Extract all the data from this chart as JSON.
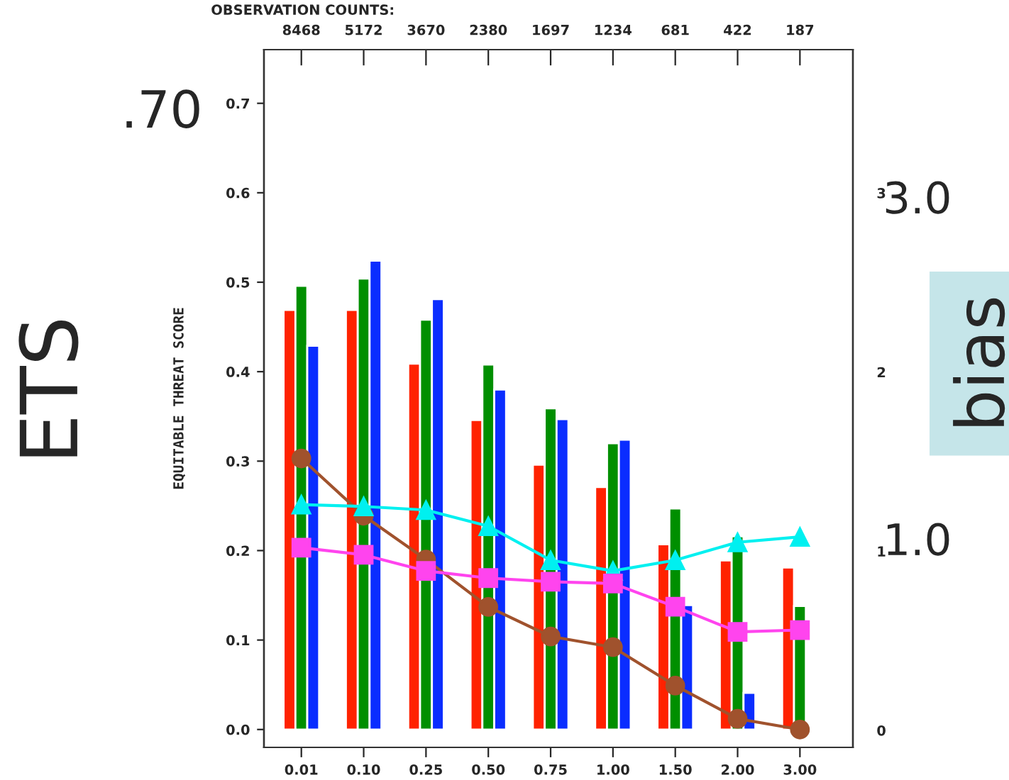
{
  "chart_data": {
    "type": "bar",
    "ylabel": "EQUITABLE THREAT SCORE",
    "y2label": "bias",
    "x2label": "OBSERVATION COUNTS:",
    "categories": [
      "0.01",
      "0.10",
      "0.25",
      "0.50",
      "0.75",
      "1.00",
      "1.50",
      "2.00",
      "3.00"
    ],
    "series": [
      {
        "color": "#ff2200",
        "values": [
          0.469,
          0.469,
          0.409,
          0.346,
          0.296,
          0.271,
          0.207,
          0.189,
          0.181
        ]
      },
      {
        "color": "#008f00",
        "values": [
          0.496,
          0.504,
          0.458,
          0.408,
          0.359,
          0.32,
          0.247,
          0.216,
          0.138
        ]
      },
      {
        "color": "#0a2dff",
        "values": [
          0.429,
          0.524,
          0.481,
          0.38,
          0.347,
          0.324,
          0.139,
          0.041,
          null
        ]
      },
      {
        "type": "line",
        "color": "#a0522d",
        "marker": "circle",
        "values": [
          0.303,
          0.239,
          0.19,
          0.137,
          0.104,
          0.092,
          0.049,
          0.012,
          0.0
        ]
      },
      {
        "type": "line",
        "color": "#00f0f0",
        "marker": "triangle",
        "axis": "y2",
        "values": [
          1.26,
          1.25,
          1.23,
          1.14,
          0.95,
          0.89,
          0.95,
          1.05,
          1.08
        ]
      },
      {
        "type": "line",
        "color": "#ff44ee",
        "marker": "square",
        "axis": "y2",
        "values": [
          1.02,
          0.98,
          0.89,
          0.85,
          0.83,
          0.82,
          0.69,
          0.55,
          0.56
        ]
      }
    ],
    "ylim": [
      -0.02,
      0.76
    ],
    "yticks": [
      {
        "value": 0,
        "label": "0.0"
      },
      {
        "value": 0.1,
        "label": "0.1"
      },
      {
        "value": 0.2,
        "label": "0.2"
      },
      {
        "value": 0.3,
        "label": "0.3"
      },
      {
        "value": 0.4,
        "label": "0.4"
      },
      {
        "value": 0.5,
        "label": "0.5"
      },
      {
        "value": 0.6,
        "label": "0.6"
      },
      {
        "value": 0.7,
        "label": "0.7"
      }
    ],
    "y2lim": [
      -0.095,
      3.8
    ],
    "y2ticks": [
      0,
      1,
      2,
      3
    ],
    "annotations": [
      ".70",
      "3.0",
      "1.0",
      "ETS",
      "8468",
      "5172",
      "3670",
      "2380",
      "1697",
      "1234",
      "681",
      "422",
      "187"
    ],
    "grid": false,
    "legend": false
  }
}
